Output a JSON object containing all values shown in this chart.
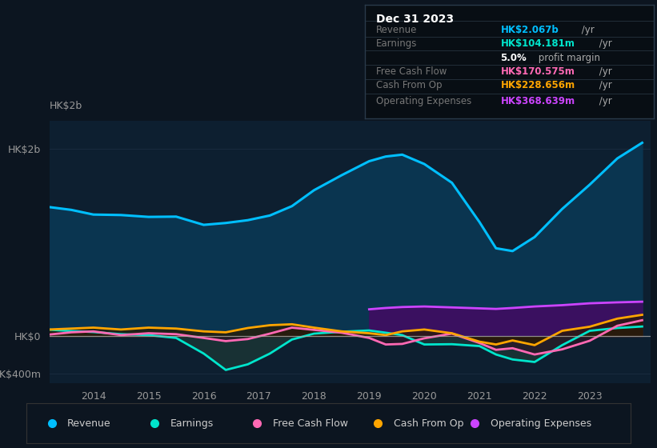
{
  "bg_color": "#0c1520",
  "plot_bg_color": "#0d1f30",
  "years": [
    2013.2,
    2013.6,
    2014.0,
    2014.5,
    2015.0,
    2015.5,
    2016.0,
    2016.4,
    2016.8,
    2017.2,
    2017.6,
    2018.0,
    2018.5,
    2019.0,
    2019.3,
    2019.6,
    2020.0,
    2020.5,
    2021.0,
    2021.3,
    2021.6,
    2022.0,
    2022.5,
    2023.0,
    2023.5,
    2023.95
  ],
  "revenue_m": [
    1380,
    1350,
    1300,
    1295,
    1275,
    1278,
    1190,
    1210,
    1240,
    1290,
    1390,
    1560,
    1720,
    1870,
    1920,
    1940,
    1840,
    1640,
    1220,
    940,
    910,
    1060,
    1360,
    1620,
    1900,
    2067
  ],
  "earnings_m": [
    70,
    55,
    45,
    22,
    12,
    -18,
    -185,
    -360,
    -300,
    -185,
    -35,
    28,
    48,
    62,
    38,
    12,
    -88,
    -85,
    -105,
    -195,
    -248,
    -275,
    -95,
    58,
    88,
    104
  ],
  "fcf_m": [
    18,
    42,
    52,
    12,
    32,
    22,
    -18,
    -52,
    -30,
    28,
    92,
    68,
    38,
    -18,
    -88,
    -82,
    -22,
    28,
    -72,
    -145,
    -128,
    -195,
    -140,
    -48,
    112,
    171
  ],
  "cfo_m": [
    72,
    82,
    92,
    72,
    92,
    82,
    52,
    42,
    88,
    118,
    128,
    92,
    52,
    32,
    12,
    52,
    72,
    32,
    -58,
    -88,
    -45,
    -95,
    58,
    102,
    188,
    229
  ],
  "opex_years": [
    2019.0,
    2019.3,
    2019.6,
    2020.0,
    2020.5,
    2021.0,
    2021.3,
    2021.6,
    2022.0,
    2022.5,
    2023.0,
    2023.5,
    2023.95
  ],
  "opex_m": [
    288,
    302,
    312,
    318,
    308,
    298,
    292,
    302,
    318,
    332,
    352,
    362,
    369
  ],
  "ylim": [
    -500,
    2300
  ],
  "ytick_positions": [
    -400,
    0,
    2000
  ],
  "ytick_labels": [
    "-HK$400m",
    "HK$0",
    "HK$2b"
  ],
  "xtick_positions": [
    2014,
    2015,
    2016,
    2017,
    2018,
    2019,
    2020,
    2021,
    2022,
    2023
  ],
  "xlim": [
    2013.2,
    2024.1
  ],
  "colors": {
    "revenue_line": "#00bfff",
    "revenue_fill": "#0a3550",
    "earnings_line": "#00e5cc",
    "earnings_fill": "#1a3535",
    "fcf_line": "#ff69b4",
    "fcf_fill": "#2a1525",
    "cfo_line": "#ffa500",
    "cfo_fill": "#2a1a00",
    "opex_line": "#cc44ff",
    "opex_fill": "#3a1060"
  },
  "info_box_rows": [
    {
      "label": "Revenue",
      "value": "HK$2.067b",
      "suffix": " /yr",
      "color": "#00bfff"
    },
    {
      "label": "Earnings",
      "value": "HK$104.181m",
      "suffix": " /yr",
      "color": "#00e5cc"
    },
    {
      "label": "",
      "value": "5.0%",
      "suffix": " profit margin",
      "color": "#ffffff"
    },
    {
      "label": "Free Cash Flow",
      "value": "HK$170.575m",
      "suffix": " /yr",
      "color": "#ff69b4"
    },
    {
      "label": "Cash From Op",
      "value": "HK$228.656m",
      "suffix": " /yr",
      "color": "#ffa500"
    },
    {
      "label": "Operating Expenses",
      "value": "HK$368.639m",
      "suffix": " /yr",
      "color": "#cc44ff"
    }
  ],
  "legend": [
    {
      "color": "#00bfff",
      "label": "Revenue"
    },
    {
      "color": "#00e5cc",
      "label": "Earnings"
    },
    {
      "color": "#ff69b4",
      "label": "Free Cash Flow"
    },
    {
      "color": "#ffa500",
      "label": "Cash From Op"
    },
    {
      "color": "#cc44ff",
      "label": "Operating Expenses"
    }
  ],
  "hk2b_label": "HK$2b",
  "zero_line_color": "#aaaaaa",
  "grid_color": "#1e3045",
  "tick_color": "#999999",
  "label_color": "#777777"
}
